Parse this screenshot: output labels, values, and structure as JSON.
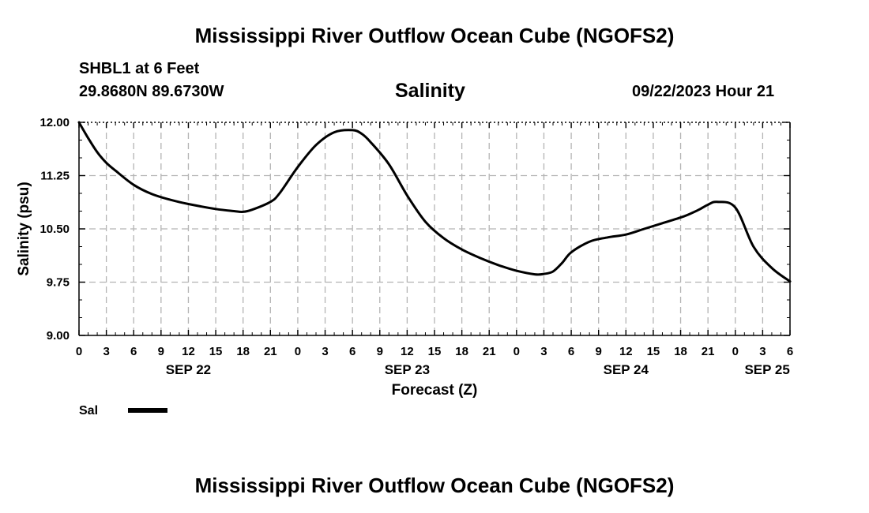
{
  "page_title": "Mississippi River Outflow Ocean Cube (NGOFS2)",
  "station": {
    "name": "SHBL1 at 6 Feet",
    "coords": "29.8680N  89.6730W"
  },
  "timestamp": "09/22/2023 Hour 21",
  "footer_title": "Mississippi River Outflow Ocean Cube (NGOFS2)",
  "colors": {
    "line": "#000000",
    "grid": "#b4b4b4",
    "background": "#ffffff"
  },
  "chart_data": {
    "type": "line",
    "title": "Salinity",
    "xlabel": "Forecast (Z)",
    "ylabel": "Salinity (psu)",
    "xlim": [
      0,
      78
    ],
    "ylim": [
      9.0,
      12.0
    ],
    "y_ticks": [
      "12.00",
      "11.25",
      "10.50",
      "9.75",
      "9.00"
    ],
    "x_tick_labels": [
      "0",
      "3",
      "6",
      "9",
      "12",
      "15",
      "18",
      "21",
      "0",
      "3",
      "6",
      "9",
      "12",
      "15",
      "18",
      "21",
      "0",
      "3",
      "6",
      "9",
      "12",
      "15",
      "18",
      "21",
      "0",
      "3",
      "6"
    ],
    "x_tick_step_hours": 3,
    "date_labels": [
      {
        "label": "SEP 22",
        "hour": 12
      },
      {
        "label": "SEP 23",
        "hour": 36
      },
      {
        "label": "SEP 24",
        "hour": 60
      },
      {
        "label": "SEP 25",
        "hour": 75.5
      }
    ],
    "grid": true,
    "series": [
      {
        "name": "Sal",
        "x": [
          0,
          1,
          2,
          3,
          4,
          6,
          8,
          10,
          12,
          15,
          17,
          18,
          19,
          21,
          22,
          24,
          26,
          28,
          30,
          31,
          32,
          34,
          36,
          38,
          40,
          42,
          44,
          46,
          48,
          50,
          51,
          52,
          53,
          54,
          56,
          58,
          60,
          62,
          64,
          66,
          67,
          68,
          69,
          70,
          72,
          74,
          76,
          78
        ],
        "values": [
          12.0,
          11.78,
          11.58,
          11.43,
          11.32,
          11.12,
          10.99,
          10.91,
          10.85,
          10.78,
          10.75,
          10.74,
          10.77,
          10.88,
          11.0,
          11.37,
          11.68,
          11.86,
          11.89,
          11.84,
          11.72,
          11.41,
          10.97,
          10.6,
          10.37,
          10.21,
          10.09,
          9.99,
          9.91,
          9.86,
          9.865,
          9.9,
          10.02,
          10.17,
          10.32,
          10.38,
          10.42,
          10.5,
          10.58,
          10.66,
          10.71,
          10.77,
          10.84,
          10.88,
          10.8,
          10.25,
          9.95,
          9.76
        ]
      }
    ],
    "legend": {
      "position": "bottom-left",
      "entries": [
        "Sal"
      ]
    }
  }
}
